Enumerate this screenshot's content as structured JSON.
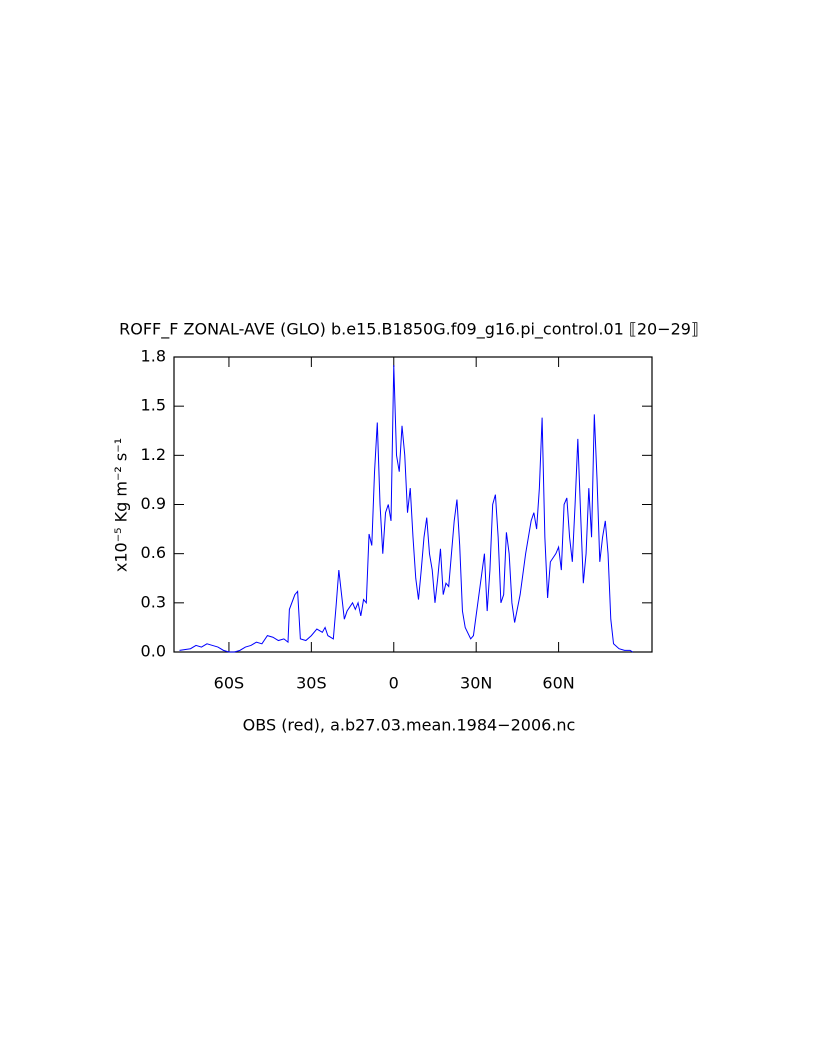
{
  "chart_data": {
    "type": "line",
    "title": "ROFF_F ZONAL-AVE (GLO) b.e15.B1850G.f09_g16.pi_control.01 ⟦20−29⟧",
    "ylabel": "x10⁻⁵ Kg m⁻² s⁻¹",
    "xlabel": "OBS (red), a.b27.03.mean.1984−2006.nc",
    "xlim": [
      -80,
      94
    ],
    "ylim": [
      0,
      1.8
    ],
    "xticks": [
      {
        "value": -60,
        "label": "60S"
      },
      {
        "value": -30,
        "label": "30S"
      },
      0,
      {
        "value": 30,
        "label": "30N"
      },
      {
        "value": 60,
        "label": "60N"
      }
    ],
    "yticks": [
      {
        "value": 0,
        "label": "0.0"
      },
      0.3,
      0.6,
      0.9,
      1.2,
      1.5,
      1.8
    ],
    "x": [
      -78,
      -74,
      -72,
      -70,
      -68,
      -66,
      -64,
      -62,
      -60,
      -58,
      -56,
      -54,
      -52,
      -50,
      -48,
      -46,
      -44,
      -42,
      -40,
      -38.5,
      -38,
      -36,
      -35,
      -34,
      -32,
      -30,
      -28,
      -26,
      -25,
      -24,
      -22,
      -21,
      -20,
      -19,
      -18,
      -17,
      -15,
      -14,
      -13,
      -12,
      -11,
      -10,
      -9,
      -8,
      -7,
      -6,
      -5,
      -4,
      -3,
      -2,
      -1,
      0,
      1,
      2,
      3,
      4,
      5,
      6,
      7,
      8,
      9,
      10,
      11,
      12,
      13,
      14,
      15,
      16,
      17,
      18,
      19,
      20,
      22,
      23,
      24,
      25,
      26,
      28,
      29,
      31,
      33,
      34,
      35,
      36,
      37,
      38,
      39,
      40,
      41,
      42,
      43,
      44,
      46,
      48,
      50,
      51,
      52,
      53,
      54,
      55,
      56,
      57,
      59,
      60,
      61,
      62,
      63,
      64,
      65,
      66,
      67,
      68,
      69,
      70,
      71,
      72,
      73,
      74,
      75,
      76,
      77,
      78,
      79,
      80,
      82,
      84,
      86,
      87
    ],
    "series": [
      {
        "name": "ROFF_F",
        "color": "#0000ff",
        "values": [
          0.01,
          0.02,
          0.04,
          0.03,
          0.05,
          0.04,
          0.03,
          0.01,
          0.0,
          0.0,
          0.01,
          0.03,
          0.04,
          0.06,
          0.05,
          0.1,
          0.09,
          0.07,
          0.08,
          0.06,
          0.26,
          0.35,
          0.37,
          0.08,
          0.07,
          0.1,
          0.14,
          0.12,
          0.15,
          0.1,
          0.08,
          0.28,
          0.5,
          0.35,
          0.2,
          0.25,
          0.3,
          0.26,
          0.3,
          0.22,
          0.32,
          0.3,
          0.72,
          0.65,
          1.1,
          1.4,
          0.9,
          0.6,
          0.85,
          0.9,
          0.8,
          1.75,
          1.2,
          1.1,
          1.38,
          1.2,
          0.85,
          1.0,
          0.7,
          0.45,
          0.32,
          0.5,
          0.7,
          0.82,
          0.6,
          0.5,
          0.3,
          0.45,
          0.63,
          0.35,
          0.42,
          0.4,
          0.8,
          0.93,
          0.65,
          0.25,
          0.15,
          0.08,
          0.1,
          0.35,
          0.6,
          0.25,
          0.5,
          0.9,
          0.96,
          0.7,
          0.3,
          0.35,
          0.73,
          0.6,
          0.3,
          0.18,
          0.35,
          0.6,
          0.8,
          0.85,
          0.75,
          1.0,
          1.43,
          0.7,
          0.33,
          0.55,
          0.6,
          0.64,
          0.5,
          0.9,
          0.94,
          0.7,
          0.55,
          0.9,
          1.3,
          0.85,
          0.42,
          0.6,
          1.0,
          0.7,
          1.45,
          1.05,
          0.55,
          0.7,
          0.8,
          0.6,
          0.2,
          0.05,
          0.02,
          0.01,
          0.01,
          0.0
        ]
      }
    ]
  }
}
